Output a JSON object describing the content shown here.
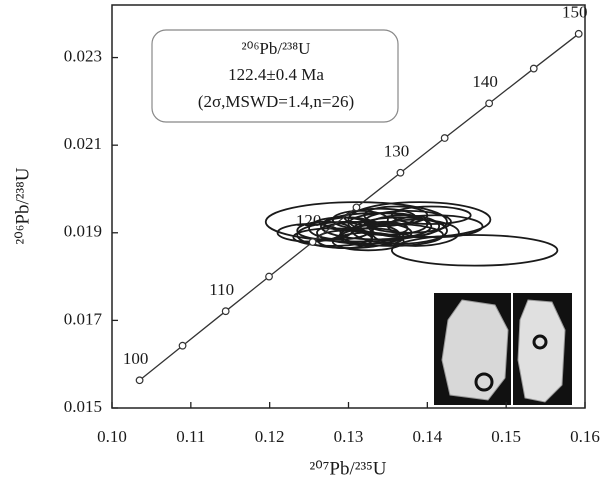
{
  "chart_data": {
    "type": "concordia",
    "x_label": "²⁰⁷Pb/²³⁵U",
    "y_label": "²⁰⁶Pb/²³⁸U",
    "annotation": [
      "²⁰⁶Pb/²³⁸U",
      "122.4±0.4 Ma",
      "(2σ,MSWD=1.4,n=26)"
    ],
    "xlim": [
      0.1,
      0.16
    ],
    "xticks": [
      {
        "value": 0.1,
        "label": "0.10"
      },
      {
        "value": 0.11,
        "label": "0.11"
      },
      {
        "value": 0.12,
        "label": "0.12"
      },
      {
        "value": 0.13,
        "label": "0.13"
      },
      {
        "value": 0.14,
        "label": "0.14"
      },
      {
        "value": 0.15,
        "label": "0.15"
      },
      {
        "value": 0.16,
        "label": "0.16"
      }
    ],
    "ylim": [
      0.015,
      0.0242
    ],
    "yticks": [
      0.015,
      0.017,
      0.019,
      0.021,
      0.023
    ],
    "concordia": {
      "x": [
        0.1035,
        0.10895,
        0.11442,
        0.11992,
        0.12545,
        0.13101,
        0.13659,
        0.1422,
        0.14784,
        0.1535,
        0.1592
      ],
      "y": [
        0.015633,
        0.016422,
        0.01721,
        0.018,
        0.018789,
        0.01958,
        0.020371,
        0.021163,
        0.021955,
        0.022749,
        0.023542
      ],
      "age_labels": [
        100,
        null,
        110,
        null,
        120,
        null,
        130,
        null,
        140,
        null,
        150
      ]
    },
    "ellipses": {
      "x": [
        0.131,
        0.146,
        0.139,
        0.1335,
        0.132,
        0.13,
        0.128,
        0.135,
        0.1365,
        0.134,
        0.129,
        0.1375,
        0.133,
        0.1355,
        0.1405,
        0.1315,
        0.127,
        0.1345,
        0.1385,
        0.13,
        0.136,
        0.1325,
        0.141,
        0.125,
        0.1295,
        0.137
      ],
      "y": [
        0.01925,
        0.0186,
        0.0193,
        0.01915,
        0.019,
        0.01895,
        0.0189,
        0.0192,
        0.01905,
        0.01935,
        0.0191,
        0.01925,
        0.0189,
        0.01895,
        0.0194,
        0.0193,
        0.01905,
        0.0191,
        0.019,
        0.0192,
        0.0194,
        0.0188,
        0.01915,
        0.019,
        0.01885,
        0.01915
      ],
      "x_err": [
        0.0115,
        0.0105,
        0.009,
        0.007,
        0.006,
        0.0065,
        0.005,
        0.005,
        0.006,
        0.0045,
        0.004,
        0.0055,
        0.004,
        0.0065,
        0.005,
        0.0035,
        0.0035,
        0.003,
        0.0055,
        0.003,
        0.004,
        0.0045,
        0.006,
        0.004,
        0.0035,
        0.0045
      ],
      "y_err": [
        0.00045,
        0.00035,
        0.0004,
        0.0003,
        0.00025,
        0.0003,
        0.0002,
        0.00025,
        0.0003,
        0.0002,
        0.00025,
        0.00025,
        0.0002,
        0.00025,
        0.0002,
        0.0002,
        0.0002,
        0.00015,
        0.0003,
        0.00015,
        0.0002,
        0.0002,
        0.00025,
        0.0002,
        0.0002,
        0.00025
      ]
    }
  }
}
